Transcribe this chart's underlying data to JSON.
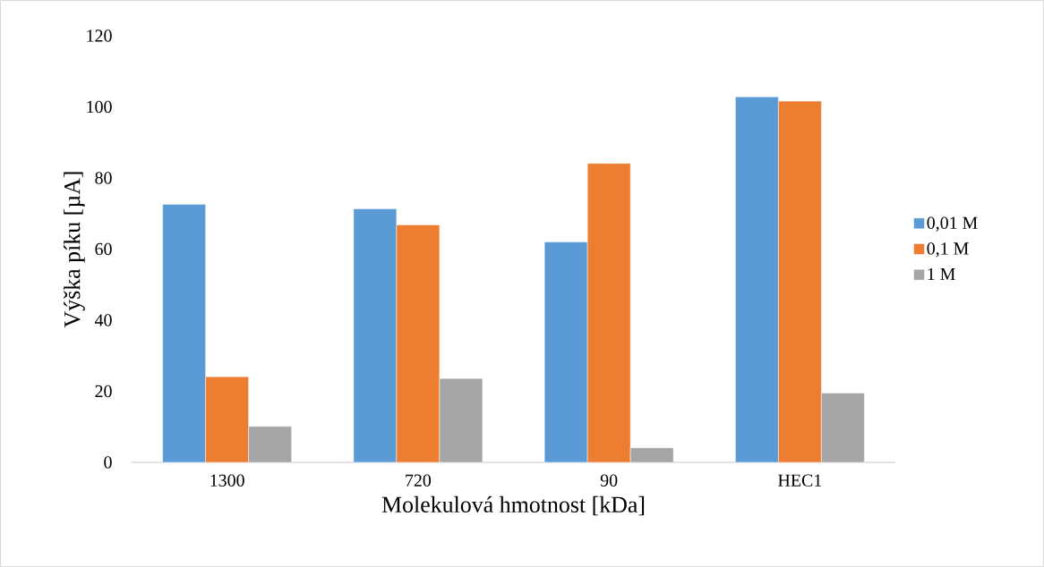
{
  "chart_data": {
    "type": "bar",
    "xlabel": "Molekulová hmotnost [kDa]",
    "ylabel": "Výška píku [µA]",
    "categories": [
      "1300",
      "720",
      "90",
      "HEC1"
    ],
    "series": [
      {
        "name": "0,01 M",
        "color": "#5b9bd5",
        "values": [
          72.6,
          71.3,
          62.0,
          102.8
        ]
      },
      {
        "name": "0,1 M",
        "color": "#ed7d31",
        "values": [
          24.1,
          66.8,
          84.1,
          101.6
        ]
      },
      {
        "name": "1 M",
        "color": "#a5a5a5",
        "values": [
          10.1,
          23.6,
          4.1,
          19.5
        ]
      }
    ],
    "ylim": [
      0,
      120
    ],
    "yticks": [
      0,
      20,
      40,
      60,
      80,
      100,
      120
    ],
    "legend": "right"
  }
}
